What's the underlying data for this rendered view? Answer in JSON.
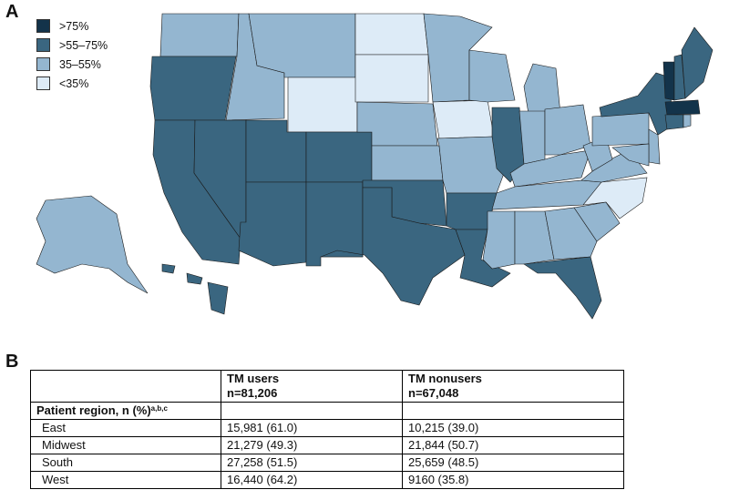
{
  "panels": {
    "a_letter": "A",
    "b_letter": "B"
  },
  "legend": [
    {
      "label": ">75%",
      "color": "#13334a"
    },
    {
      "label": ">55–75%",
      "color": "#3a6680"
    },
    {
      "label": "35–55%",
      "color": "#94b6d0"
    },
    {
      "label": "<35%",
      "color": "#ddebf7"
    }
  ],
  "states": [
    {
      "name": "WA",
      "category": "35–55%"
    },
    {
      "name": "OR",
      "category": ">55–75%"
    },
    {
      "name": "CA",
      "category": ">55–75%"
    },
    {
      "name": "NV",
      "category": ">55–75%"
    },
    {
      "name": "ID",
      "category": "35–55%"
    },
    {
      "name": "MT",
      "category": "35–55%"
    },
    {
      "name": "WY",
      "category": "<35%"
    },
    {
      "name": "UT",
      "category": ">55–75%"
    },
    {
      "name": "AZ",
      "category": ">55–75%"
    },
    {
      "name": "CO",
      "category": ">55–75%"
    },
    {
      "name": "NM",
      "category": ">55–75%"
    },
    {
      "name": "ND",
      "category": "<35%"
    },
    {
      "name": "SD",
      "category": "<35%"
    },
    {
      "name": "NE",
      "category": "35–55%"
    },
    {
      "name": "KS",
      "category": "35–55%"
    },
    {
      "name": "OK",
      "category": ">55–75%"
    },
    {
      "name": "TX",
      "category": ">55–75%"
    },
    {
      "name": "MN",
      "category": "35–55%"
    },
    {
      "name": "IA",
      "category": "<35%"
    },
    {
      "name": "MO",
      "category": "35–55%"
    },
    {
      "name": "AR",
      "category": ">55–75%"
    },
    {
      "name": "LA",
      "category": ">55–75%"
    },
    {
      "name": "WI",
      "category": "35–55%"
    },
    {
      "name": "IL",
      "category": ">55–75%"
    },
    {
      "name": "MI",
      "category": "35–55%"
    },
    {
      "name": "IN",
      "category": "35–55%"
    },
    {
      "name": "OH",
      "category": "35–55%"
    },
    {
      "name": "KY",
      "category": "35–55%"
    },
    {
      "name": "TN",
      "category": "35–55%"
    },
    {
      "name": "MS",
      "category": "35–55%"
    },
    {
      "name": "AL",
      "category": "35–55%"
    },
    {
      "name": "GA",
      "category": "35–55%"
    },
    {
      "name": "FL",
      "category": ">55–75%"
    },
    {
      "name": "SC",
      "category": "35–55%"
    },
    {
      "name": "NC",
      "category": "<35%"
    },
    {
      "name": "VA",
      "category": "35–55%"
    },
    {
      "name": "WV",
      "category": "35–55%"
    },
    {
      "name": "PA",
      "category": "35–55%"
    },
    {
      "name": "NY",
      "category": ">55–75%"
    },
    {
      "name": "VT",
      "category": ">75%"
    },
    {
      "name": "NH",
      "category": ">55–75%"
    },
    {
      "name": "ME",
      "category": ">55–75%"
    },
    {
      "name": "MA",
      "category": ">75%"
    },
    {
      "name": "CT",
      "category": ">55–75%"
    },
    {
      "name": "RI",
      "category": "35–55%"
    },
    {
      "name": "NJ",
      "category": "35–55%"
    },
    {
      "name": "MD",
      "category": "35–55%"
    },
    {
      "name": "AK",
      "category": "35–55%"
    },
    {
      "name": "HI",
      "category": ">55–75%"
    }
  ],
  "table": {
    "col2_head1": "TM users",
    "col2_head2": "n=81,206",
    "col3_head1": "TM nonusers",
    "col3_head2": "n=67,048",
    "section_label": "Patient region, n (%)",
    "section_sup": "a,b,c",
    "rows": [
      {
        "region": "East",
        "users": "15,981 (61.0)",
        "nonusers": "10,215 (39.0)"
      },
      {
        "region": "Midwest",
        "users": "21,279 (49.3)",
        "nonusers": "21,844 (50.7)"
      },
      {
        "region": "South",
        "users": "27,258 (51.5)",
        "nonusers": "25,659 (48.5)"
      },
      {
        "region": "West",
        "users": "16,440 (64.2)",
        "nonusers": "9160 (35.8)"
      }
    ]
  }
}
